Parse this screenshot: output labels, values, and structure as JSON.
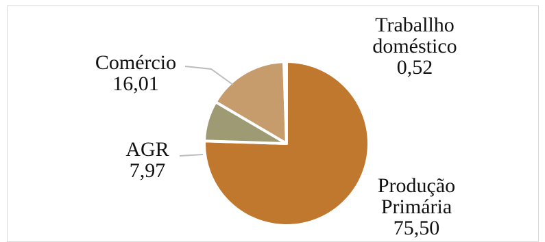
{
  "chart_data": {
    "type": "pie",
    "title": "",
    "legend": "none",
    "start_angle_deg": 90,
    "direction": "clockwise",
    "slices": [
      {
        "label": [
          "Produção",
          "Primária"
        ],
        "value": 75.5,
        "value_text": "75,50",
        "color": "#c0782f"
      },
      {
        "label": [
          "AGR"
        ],
        "value": 7.97,
        "value_text": "7,97",
        "color": "#9e9a73"
      },
      {
        "label": [
          "Comércio"
        ],
        "value": 16.01,
        "value_text": "16,01",
        "color": "#c69c6c"
      },
      {
        "label": [
          "Traballho",
          "doméstico"
        ],
        "value": 0.52,
        "value_text": "0,52",
        "color": "#7a3d14"
      }
    ]
  }
}
